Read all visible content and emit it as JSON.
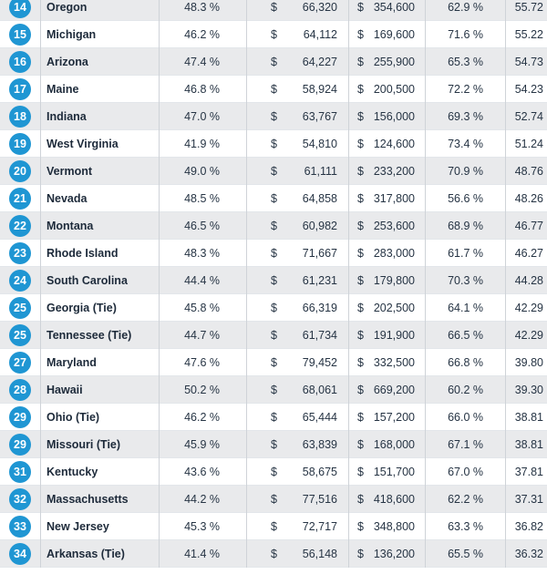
{
  "table": {
    "rows": [
      {
        "rank": "14",
        "state": "Oregon",
        "pct1": "48.3 %",
        "dollar": "$",
        "income": "66,320",
        "home_value": "354,600",
        "pct2": "62.9 %",
        "score": "55.72"
      },
      {
        "rank": "15",
        "state": "Michigan",
        "pct1": "46.2 %",
        "dollar": "$",
        "income": "64,112",
        "home_value": "169,600",
        "pct2": "71.6 %",
        "score": "55.22"
      },
      {
        "rank": "16",
        "state": "Arizona",
        "pct1": "47.4 %",
        "dollar": "$",
        "income": "64,227",
        "home_value": "255,900",
        "pct2": "65.3 %",
        "score": "54.73"
      },
      {
        "rank": "17",
        "state": "Maine",
        "pct1": "46.8 %",
        "dollar": "$",
        "income": "58,924",
        "home_value": "200,500",
        "pct2": "72.2 %",
        "score": "54.23"
      },
      {
        "rank": "18",
        "state": "Indiana",
        "pct1": "47.0 %",
        "dollar": "$",
        "income": "63,767",
        "home_value": "156,000",
        "pct2": "69.3 %",
        "score": "52.74"
      },
      {
        "rank": "19",
        "state": "West Virginia",
        "pct1": "41.9 %",
        "dollar": "$",
        "income": "54,810",
        "home_value": "124,600",
        "pct2": "73.4 %",
        "score": "51.24"
      },
      {
        "rank": "20",
        "state": "Vermont",
        "pct1": "49.0 %",
        "dollar": "$",
        "income": "61,111",
        "home_value": "233,200",
        "pct2": "70.9 %",
        "score": "48.76"
      },
      {
        "rank": "21",
        "state": "Nevada",
        "pct1": "48.5 %",
        "dollar": "$",
        "income": "64,858",
        "home_value": "317,800",
        "pct2": "56.6 %",
        "score": "48.26"
      },
      {
        "rank": "22",
        "state": "Montana",
        "pct1": "46.5 %",
        "dollar": "$",
        "income": "60,982",
        "home_value": "253,600",
        "pct2": "68.9 %",
        "score": "46.77"
      },
      {
        "rank": "23",
        "state": "Rhode Island",
        "pct1": "48.3 %",
        "dollar": "$",
        "income": "71,667",
        "home_value": "283,000",
        "pct2": "61.7 %",
        "score": "46.27"
      },
      {
        "rank": "24",
        "state": "South Carolina",
        "pct1": "44.4 %",
        "dollar": "$",
        "income": "61,231",
        "home_value": "179,800",
        "pct2": "70.3 %",
        "score": "44.28"
      },
      {
        "rank": "25",
        "state": "Georgia (Tie)",
        "pct1": "45.8 %",
        "dollar": "$",
        "income": "66,319",
        "home_value": "202,500",
        "pct2": "64.1 %",
        "score": "42.29"
      },
      {
        "rank": "25",
        "state": "Tennessee (Tie)",
        "pct1": "44.7 %",
        "dollar": "$",
        "income": "61,734",
        "home_value": "191,900",
        "pct2": "66.5 %",
        "score": "42.29"
      },
      {
        "rank": "27",
        "state": "Maryland",
        "pct1": "47.6 %",
        "dollar": "$",
        "income": "79,452",
        "home_value": "332,500",
        "pct2": "66.8 %",
        "score": "39.80"
      },
      {
        "rank": "28",
        "state": "Hawaii",
        "pct1": "50.2 %",
        "dollar": "$",
        "income": "68,061",
        "home_value": "669,200",
        "pct2": "60.2 %",
        "score": "39.30"
      },
      {
        "rank": "29",
        "state": "Ohio (Tie)",
        "pct1": "46.2 %",
        "dollar": "$",
        "income": "65,444",
        "home_value": "157,200",
        "pct2": "66.0 %",
        "score": "38.81"
      },
      {
        "rank": "29",
        "state": "Missouri (Tie)",
        "pct1": "45.9 %",
        "dollar": "$",
        "income": "63,839",
        "home_value": "168,000",
        "pct2": "67.1 %",
        "score": "38.81"
      },
      {
        "rank": "31",
        "state": "Kentucky",
        "pct1": "43.6 %",
        "dollar": "$",
        "income": "58,675",
        "home_value": "151,700",
        "pct2": "67.0 %",
        "score": "37.81"
      },
      {
        "rank": "32",
        "state": "Massachusetts",
        "pct1": "44.2 %",
        "dollar": "$",
        "income": "77,516",
        "home_value": "418,600",
        "pct2": "62.2 %",
        "score": "37.31"
      },
      {
        "rank": "33",
        "state": "New Jersey",
        "pct1": "45.3 %",
        "dollar": "$",
        "income": "72,717",
        "home_value": "348,800",
        "pct2": "63.3 %",
        "score": "36.82"
      },
      {
        "rank": "34",
        "state": "Arkansas (Tie)",
        "pct1": "41.4 %",
        "dollar": "$",
        "income": "56,148",
        "home_value": "136,200",
        "pct2": "65.5 %",
        "score": "36.32"
      }
    ]
  },
  "colors": {
    "rank_badge": "#1f96d3",
    "row_alt": "#e9eaec",
    "row_white": "#ffffff",
    "text": "#1d2a3a"
  }
}
